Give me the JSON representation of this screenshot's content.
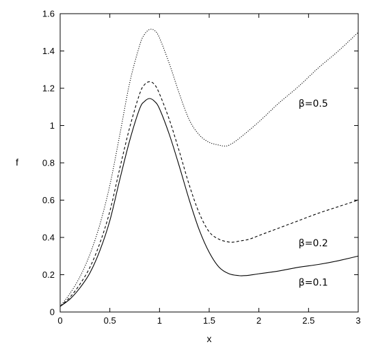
{
  "chart_data": {
    "type": "line",
    "xlabel": "x",
    "ylabel": "f",
    "xlim": [
      0,
      3
    ],
    "ylim": [
      0,
      1.6
    ],
    "xticks": [
      "0",
      "0.5",
      "1",
      "1.5",
      "2",
      "2.5",
      "3"
    ],
    "yticks": [
      "0",
      "0.2",
      "0.4",
      "0.6",
      "0.8",
      "1",
      "1.2",
      "1.4",
      "1.6"
    ],
    "grid": false,
    "legend": "none",
    "series": [
      {
        "name": "β=0.1",
        "style": "solid",
        "label_at": [
          2.4,
          0.16
        ],
        "x": [
          0,
          0.1,
          0.2,
          0.3,
          0.4,
          0.5,
          0.6,
          0.7,
          0.8,
          0.85,
          0.9,
          0.95,
          1.0,
          1.1,
          1.2,
          1.3,
          1.4,
          1.5,
          1.6,
          1.7,
          1.8,
          1.85,
          1.9,
          2.0,
          2.2,
          2.4,
          2.6,
          2.8,
          3.0
        ],
        "y": [
          0.03,
          0.07,
          0.13,
          0.21,
          0.33,
          0.49,
          0.71,
          0.92,
          1.09,
          1.13,
          1.145,
          1.13,
          1.09,
          0.95,
          0.78,
          0.6,
          0.44,
          0.32,
          0.24,
          0.205,
          0.195,
          0.195,
          0.197,
          0.205,
          0.22,
          0.24,
          0.255,
          0.275,
          0.3
        ]
      },
      {
        "name": "β=0.2",
        "style": "dashed",
        "label_at": [
          2.4,
          0.37
        ],
        "x": [
          0,
          0.1,
          0.2,
          0.3,
          0.4,
          0.5,
          0.6,
          0.7,
          0.8,
          0.85,
          0.9,
          0.95,
          1.0,
          1.1,
          1.2,
          1.3,
          1.4,
          1.5,
          1.6,
          1.7,
          1.75,
          1.8,
          1.9,
          2.0,
          2.2,
          2.4,
          2.6,
          2.8,
          3.0
        ],
        "y": [
          0.03,
          0.08,
          0.15,
          0.24,
          0.37,
          0.54,
          0.77,
          0.99,
          1.17,
          1.22,
          1.235,
          1.22,
          1.17,
          1.03,
          0.86,
          0.68,
          0.53,
          0.43,
          0.39,
          0.375,
          0.375,
          0.38,
          0.39,
          0.41,
          0.45,
          0.49,
          0.53,
          0.565,
          0.6
        ]
      },
      {
        "name": "β=0.5",
        "style": "dotted",
        "label_at": [
          2.4,
          1.12
        ],
        "x": [
          0,
          0.1,
          0.2,
          0.3,
          0.4,
          0.5,
          0.6,
          0.7,
          0.8,
          0.85,
          0.9,
          0.95,
          1.0,
          1.1,
          1.2,
          1.3,
          1.4,
          1.5,
          1.6,
          1.65,
          1.7,
          1.8,
          2.0,
          2.2,
          2.4,
          2.6,
          2.8,
          3.0
        ],
        "y": [
          0.03,
          0.1,
          0.19,
          0.31,
          0.47,
          0.68,
          0.95,
          1.23,
          1.43,
          1.49,
          1.515,
          1.51,
          1.47,
          1.33,
          1.17,
          1.03,
          0.95,
          0.91,
          0.895,
          0.89,
          0.895,
          0.93,
          1.02,
          1.12,
          1.21,
          1.31,
          1.4,
          1.5
        ]
      }
    ]
  }
}
